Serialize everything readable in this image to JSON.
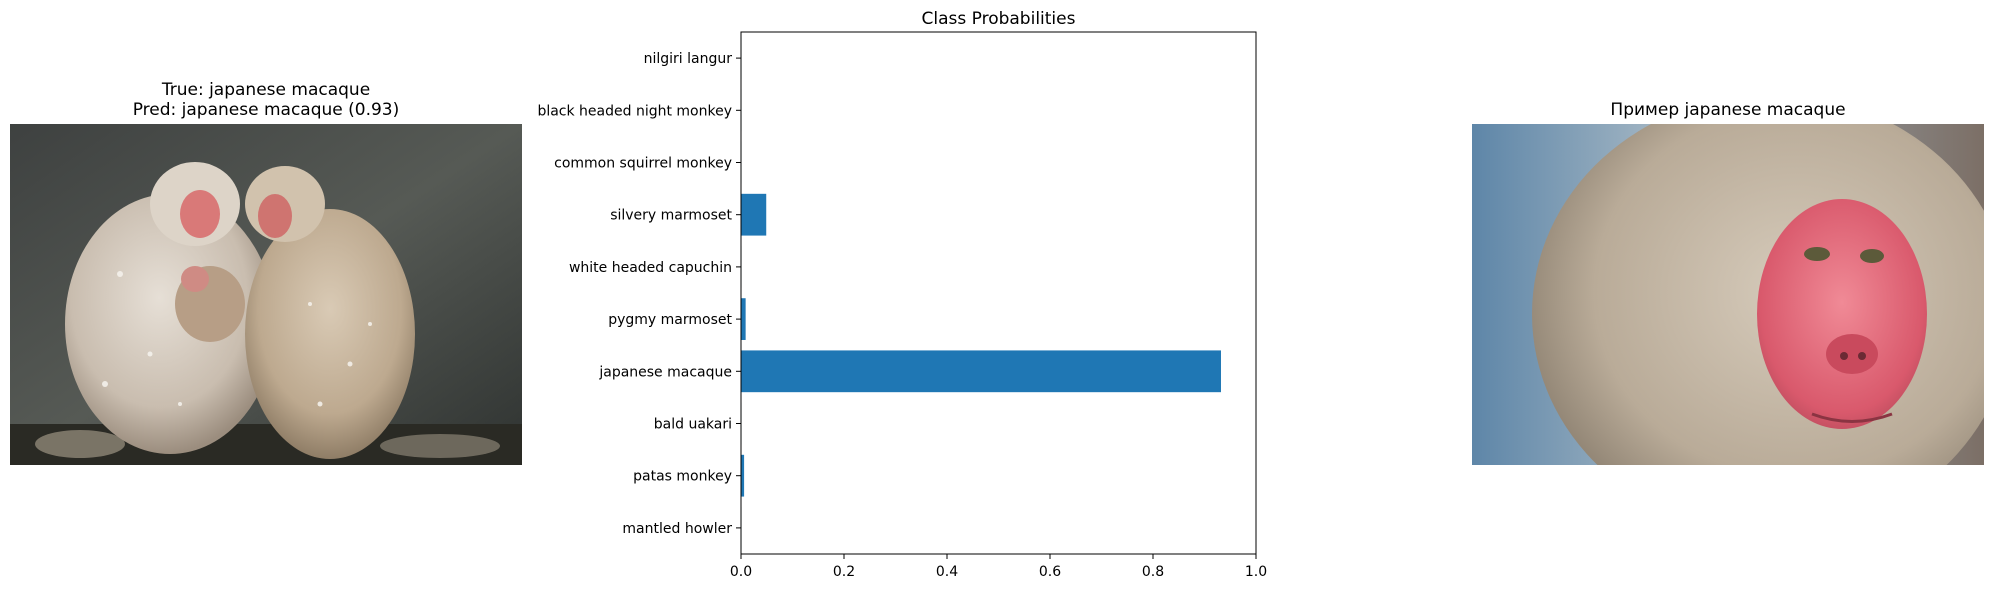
{
  "left_panel": {
    "title_line1": "True: japanese macaque",
    "title_line2": "Pred: japanese macaque (0.93)",
    "image_icon": "monkey-family-photo"
  },
  "right_panel": {
    "title": "Пример japanese macaque",
    "image_icon": "macaque-face-photo"
  },
  "chart_data": {
    "type": "bar",
    "orientation": "horizontal",
    "title": "Class Probabilities",
    "xlabel": "",
    "ylabel": "",
    "xlim": [
      0,
      1.0
    ],
    "xticks": [
      "0.0",
      "0.2",
      "0.4",
      "0.6",
      "0.8",
      "1.0"
    ],
    "categories": [
      "mantled howler",
      "patas monkey",
      "bald uakari",
      "japanese macaque",
      "pygmy marmoset",
      "white headed capuchin",
      "silvery marmoset",
      "common squirrel monkey",
      "black headed night monkey",
      "nilgiri langur"
    ],
    "values": [
      0.001,
      0.006,
      0.001,
      0.932,
      0.009,
      0.001,
      0.049,
      0.001,
      0.001,
      0.001
    ],
    "bar_color": "#1f77b4",
    "grid": false
  }
}
